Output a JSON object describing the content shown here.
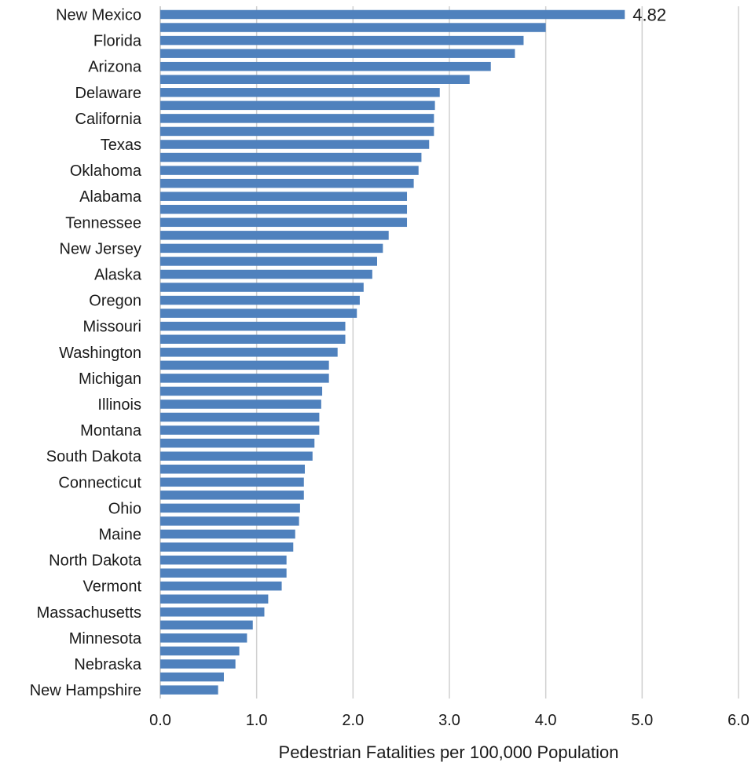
{
  "chart_data": {
    "type": "bar",
    "orientation": "horizontal",
    "xlabel": "Pedestrian Fatalities per 100,000 Population",
    "xlim": [
      0,
      6
    ],
    "xticks": [
      0,
      1,
      2,
      3,
      4,
      5,
      6
    ],
    "xtick_labels": [
      "0.0",
      "1.0",
      "2.0",
      "3.0",
      "4.0",
      "5.0",
      "6.0"
    ],
    "grid": "vertical",
    "bar_color": "#4f81bd",
    "categories": [
      "New Mexico",
      "",
      "Florida",
      "",
      "Arizona",
      "",
      "Delaware",
      "",
      "California",
      "",
      "Texas",
      "",
      "Oklahoma",
      "",
      "Alabama",
      "",
      "Tennessee",
      "",
      "New Jersey",
      "",
      "Alaska",
      "",
      "Oregon",
      "",
      "Missouri",
      "",
      "Washington",
      "",
      "Michigan",
      "",
      "Illinois",
      "",
      "Montana",
      "",
      "South Dakota",
      "",
      "Connecticut",
      "",
      "Ohio",
      "",
      "Maine",
      "",
      "North Dakota",
      "",
      "Vermont",
      "",
      "Massachusetts",
      "",
      "Minnesota",
      "",
      "Nebraska",
      "",
      "New Hampshire"
    ],
    "values": [
      4.82,
      4.0,
      3.77,
      3.68,
      3.43,
      3.21,
      2.9,
      2.85,
      2.84,
      2.84,
      2.79,
      2.71,
      2.68,
      2.63,
      2.56,
      2.56,
      2.56,
      2.37,
      2.31,
      2.25,
      2.2,
      2.11,
      2.07,
      2.04,
      1.92,
      1.92,
      1.84,
      1.75,
      1.75,
      1.68,
      1.67,
      1.65,
      1.65,
      1.6,
      1.58,
      1.5,
      1.49,
      1.49,
      1.45,
      1.44,
      1.4,
      1.38,
      1.31,
      1.31,
      1.26,
      1.12,
      1.08,
      0.96,
      0.9,
      0.82,
      0.78,
      0.66,
      0.6
    ],
    "data_labels": [
      {
        "index": 0,
        "text": "4.82"
      }
    ]
  }
}
